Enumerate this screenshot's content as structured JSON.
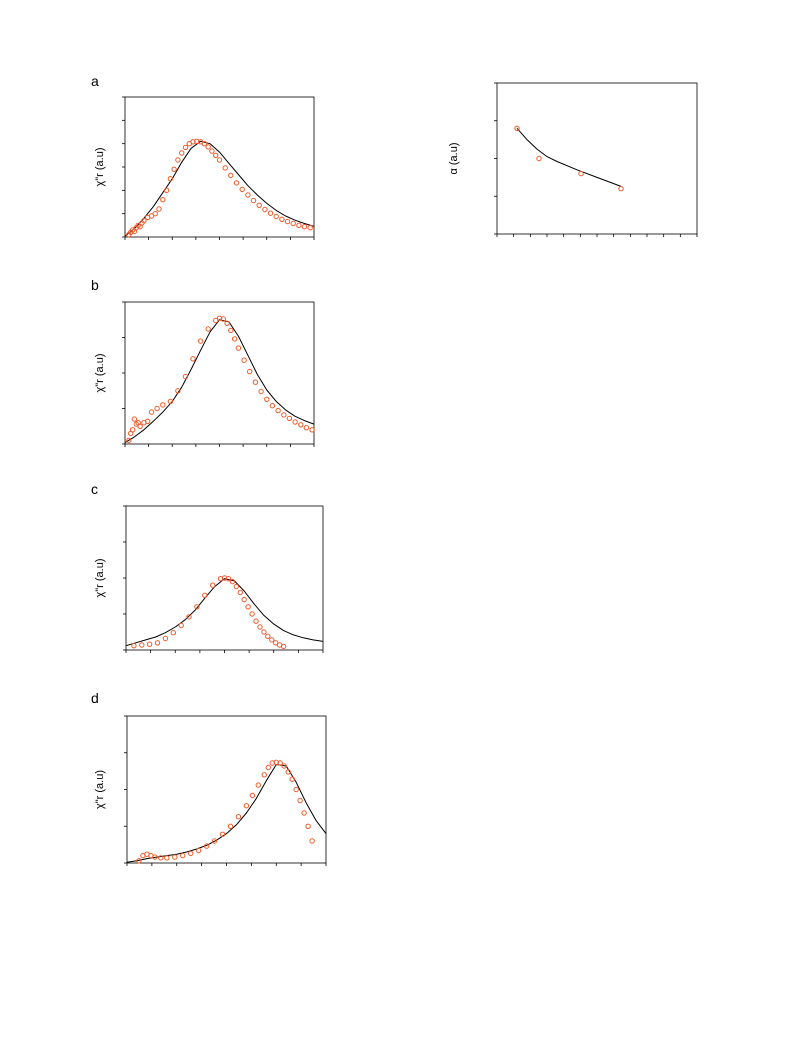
{
  "colors": {
    "data_points": "#f05a28",
    "fit_line": "#000000",
    "axes": "#000000"
  },
  "chart_data": [
    {
      "type": "scatter",
      "panel": "a",
      "ylabel": "χ\"r (a.u)",
      "ylim": [
        0,
        3
      ],
      "xlim": [
        0,
        10
      ],
      "fit": {
        "peak_x": 4.0,
        "peak_y": 2.05,
        "width_left": 2.3,
        "width_right": 2.9
      },
      "series": [
        {
          "type": "scatter",
          "x": [
            0.2,
            0.3,
            0.4,
            0.5,
            0.6,
            0.7,
            0.8,
            0.9,
            1.0,
            1.2,
            1.4,
            1.6,
            1.8,
            2.0,
            2.2,
            2.4,
            2.6,
            2.8,
            3.0,
            3.2,
            3.4,
            3.6,
            3.8,
            4.0,
            4.2,
            4.4,
            4.6,
            4.8,
            5.0,
            5.3,
            5.6,
            5.9,
            6.2,
            6.5,
            6.8,
            7.1,
            7.4,
            7.7,
            8.0,
            8.3,
            8.6,
            8.9,
            9.2,
            9.5,
            9.8
          ],
          "y": [
            0.05,
            0.1,
            0.15,
            0.12,
            0.2,
            0.25,
            0.22,
            0.3,
            0.35,
            0.42,
            0.45,
            0.5,
            0.6,
            0.8,
            1.0,
            1.25,
            1.45,
            1.65,
            1.8,
            1.92,
            2.0,
            2.04,
            2.05,
            2.04,
            2.0,
            1.93,
            1.84,
            1.75,
            1.65,
            1.48,
            1.32,
            1.16,
            1.02,
            0.9,
            0.78,
            0.68,
            0.59,
            0.51,
            0.44,
            0.38,
            0.33,
            0.29,
            0.25,
            0.22,
            0.2
          ]
        },
        {
          "type": "line",
          "x": [
            0,
            0.5,
            1,
            1.5,
            2,
            2.5,
            3,
            3.5,
            4,
            4.5,
            5,
            5.5,
            6,
            6.5,
            7,
            7.5,
            8,
            8.5,
            9,
            9.5,
            10
          ],
          "y": [
            0.02,
            0.18,
            0.4,
            0.65,
            0.95,
            1.25,
            1.6,
            1.9,
            2.05,
            2.0,
            1.82,
            1.58,
            1.34,
            1.1,
            0.9,
            0.72,
            0.57,
            0.45,
            0.36,
            0.29,
            0.23
          ]
        }
      ]
    },
    {
      "type": "scatter",
      "panel": "b",
      "ylabel": "χ\"r (a.u)",
      "ylim": [
        0,
        2
      ],
      "xlim": [
        0,
        10
      ],
      "series": [
        {
          "type": "scatter",
          "x": [
            0.2,
            0.3,
            0.4,
            0.5,
            0.6,
            0.7,
            0.8,
            1.0,
            1.2,
            1.4,
            1.7,
            2.0,
            2.4,
            2.8,
            3.2,
            3.6,
            4.0,
            4.4,
            4.8,
            5.0,
            5.2,
            5.4,
            5.6,
            5.8,
            6.0,
            6.3,
            6.6,
            6.9,
            7.2,
            7.5,
            7.8,
            8.1,
            8.4,
            8.7,
            9.0,
            9.3,
            9.6,
            9.9
          ],
          "y": [
            0.05,
            0.15,
            0.2,
            0.35,
            0.28,
            0.3,
            0.25,
            0.3,
            0.32,
            0.45,
            0.5,
            0.55,
            0.6,
            0.75,
            0.95,
            1.2,
            1.45,
            1.62,
            1.74,
            1.77,
            1.76,
            1.7,
            1.6,
            1.48,
            1.35,
            1.18,
            1.02,
            0.87,
            0.74,
            0.63,
            0.54,
            0.47,
            0.41,
            0.36,
            0.31,
            0.27,
            0.23,
            0.2
          ]
        },
        {
          "type": "line",
          "x": [
            0,
            0.5,
            1,
            1.5,
            2,
            2.5,
            3,
            3.5,
            4,
            4.5,
            5,
            5.5,
            6,
            6.5,
            7,
            7.5,
            8,
            8.5,
            9,
            9.5,
            10
          ],
          "y": [
            0.02,
            0.1,
            0.2,
            0.32,
            0.45,
            0.6,
            0.8,
            1.05,
            1.32,
            1.58,
            1.75,
            1.72,
            1.52,
            1.25,
            0.98,
            0.76,
            0.6,
            0.48,
            0.39,
            0.33,
            0.28
          ]
        }
      ]
    },
    {
      "type": "scatter",
      "panel": "c",
      "ylabel": "χ\"r (a.u)",
      "ylim": [
        0,
        2
      ],
      "xlim": [
        0,
        10
      ],
      "series": [
        {
          "type": "scatter",
          "x": [
            0.4,
            0.8,
            1.2,
            1.6,
            2.0,
            2.4,
            2.8,
            3.2,
            3.6,
            4.0,
            4.4,
            4.8,
            5.0,
            5.2,
            5.4,
            5.6,
            5.8,
            6.0,
            6.2,
            6.4,
            6.6,
            6.8,
            7.0,
            7.2,
            7.4,
            7.6,
            7.8,
            8.0
          ],
          "y": [
            0.06,
            0.07,
            0.08,
            0.1,
            0.16,
            0.24,
            0.34,
            0.46,
            0.6,
            0.76,
            0.9,
            0.99,
            1.0,
            0.99,
            0.95,
            0.88,
            0.8,
            0.7,
            0.6,
            0.5,
            0.4,
            0.32,
            0.25,
            0.19,
            0.14,
            0.1,
            0.07,
            0.05
          ]
        },
        {
          "type": "line",
          "x": [
            0,
            0.5,
            1,
            1.5,
            2,
            2.5,
            3,
            3.5,
            4,
            4.5,
            5,
            5.5,
            6,
            6.5,
            7,
            7.5,
            8,
            8.5,
            9,
            9.5,
            10
          ],
          "y": [
            0.06,
            0.1,
            0.14,
            0.18,
            0.24,
            0.32,
            0.42,
            0.55,
            0.72,
            0.88,
            0.99,
            0.96,
            0.82,
            0.64,
            0.48,
            0.36,
            0.27,
            0.21,
            0.17,
            0.14,
            0.12
          ]
        }
      ]
    },
    {
      "type": "scatter",
      "panel": "d",
      "ylabel": "χ\"r (a.u)",
      "ylim": [
        0,
        2
      ],
      "xlim": [
        0,
        10
      ],
      "series": [
        {
          "type": "scatter",
          "x": [
            0.6,
            0.8,
            1.0,
            1.2,
            1.4,
            1.7,
            2.0,
            2.4,
            2.8,
            3.2,
            3.6,
            4.0,
            4.4,
            4.8,
            5.2,
            5.6,
            6.0,
            6.3,
            6.6,
            6.9,
            7.1,
            7.3,
            7.5,
            7.7,
            7.9,
            8.1,
            8.3,
            8.5,
            8.7,
            8.9,
            9.1,
            9.3
          ],
          "y": [
            0.03,
            0.1,
            0.12,
            0.1,
            0.08,
            0.07,
            0.07,
            0.08,
            0.1,
            0.13,
            0.17,
            0.23,
            0.3,
            0.39,
            0.5,
            0.63,
            0.78,
            0.92,
            1.06,
            1.2,
            1.3,
            1.36,
            1.37,
            1.36,
            1.32,
            1.24,
            1.14,
            1.0,
            0.85,
            0.68,
            0.5,
            0.3
          ]
        },
        {
          "type": "line",
          "x": [
            0,
            0.5,
            1,
            1.5,
            2,
            2.5,
            3,
            3.5,
            4,
            4.5,
            5,
            5.5,
            6,
            6.5,
            7,
            7.5,
            8,
            8.5,
            9,
            9.5,
            10
          ],
          "y": [
            0.01,
            0.03,
            0.06,
            0.08,
            0.1,
            0.12,
            0.15,
            0.19,
            0.24,
            0.31,
            0.4,
            0.52,
            0.68,
            0.88,
            1.12,
            1.34,
            1.32,
            1.1,
            0.82,
            0.58,
            0.4
          ]
        }
      ]
    },
    {
      "type": "line",
      "panel": "alpha",
      "ylabel": "α (a.u)",
      "ylim": [
        0,
        4
      ],
      "xlim": [
        0,
        10
      ],
      "series": [
        {
          "type": "scatter",
          "x": [
            1,
            2.1,
            4.2,
            6.2
          ],
          "y": [
            2.8,
            2.0,
            1.6,
            1.2
          ]
        },
        {
          "type": "line",
          "x": [
            1,
            1.5,
            2,
            2.5,
            3,
            4,
            5,
            6,
            6.2
          ],
          "y": [
            2.8,
            2.5,
            2.25,
            2.05,
            1.92,
            1.7,
            1.5,
            1.3,
            1.26
          ]
        }
      ]
    }
  ],
  "panel_labels": {
    "a": "a",
    "b": "b",
    "c": "c",
    "d": "d"
  }
}
